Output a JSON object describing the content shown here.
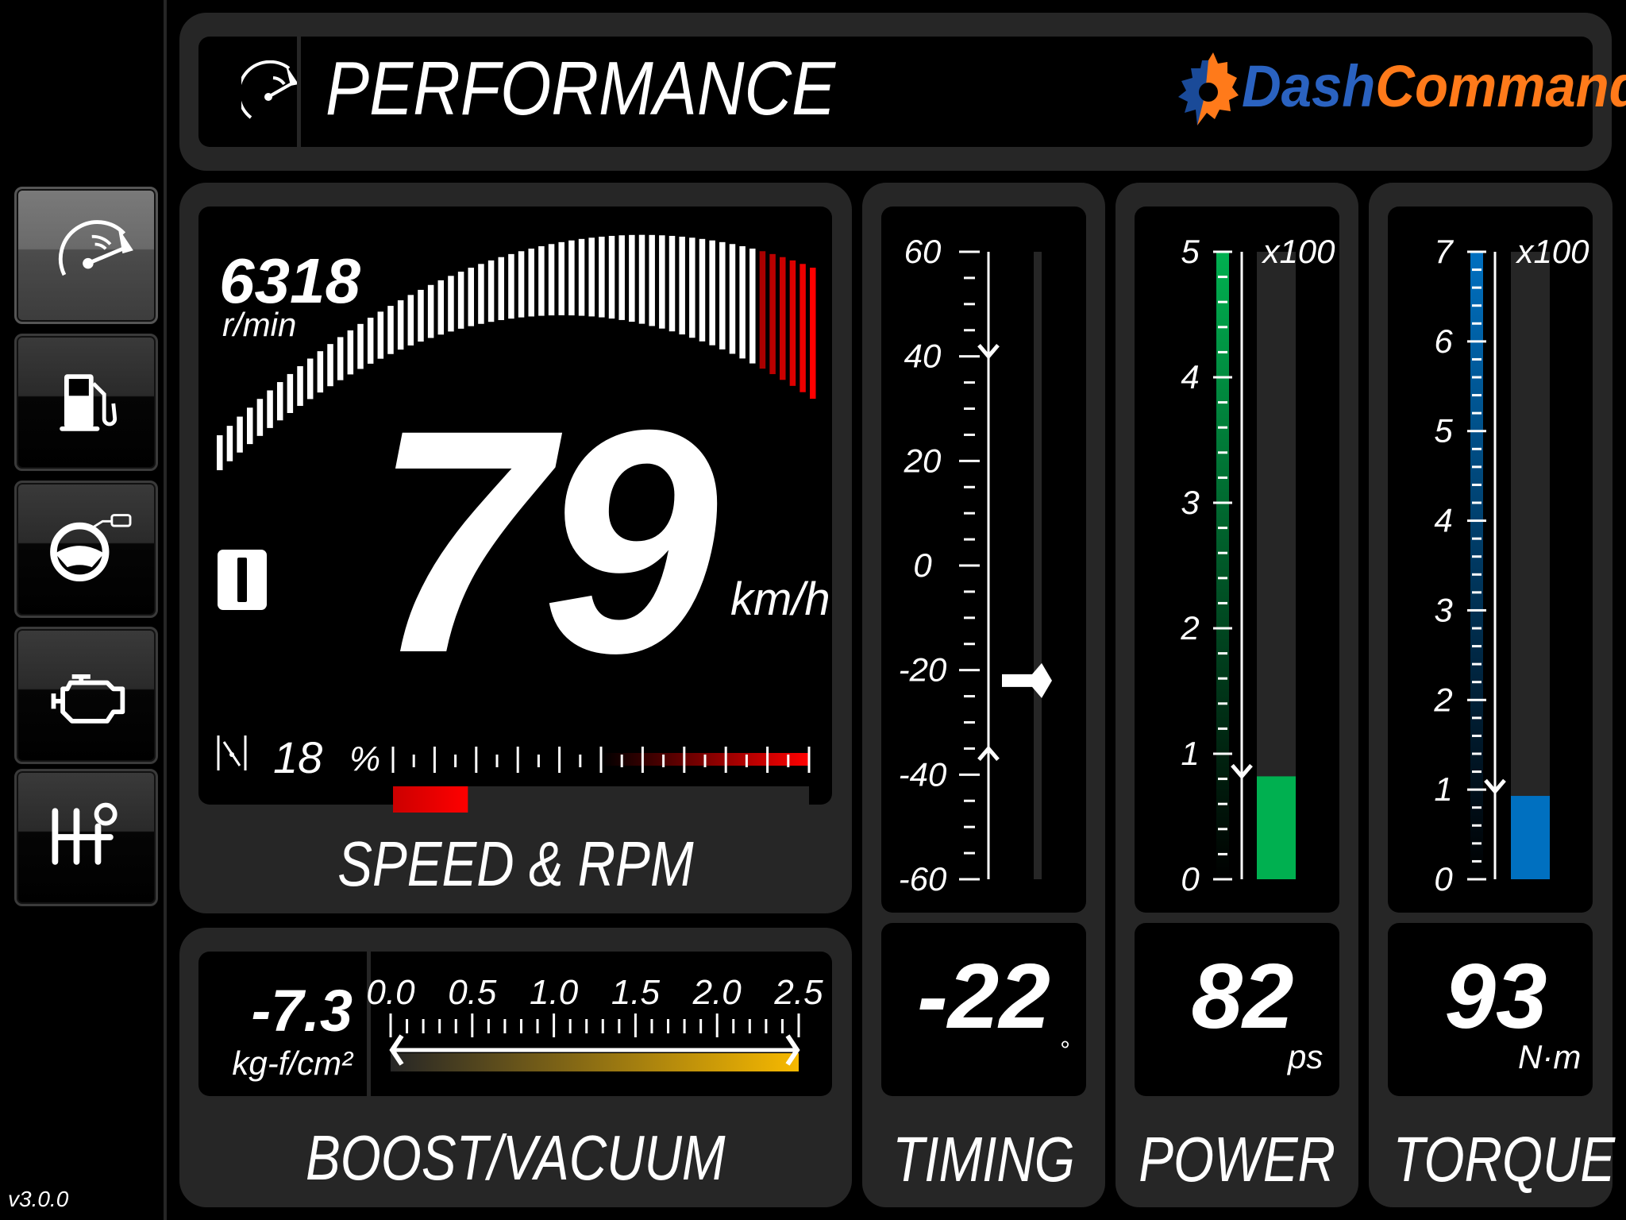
{
  "app": {
    "version": "v3.0.0"
  },
  "header": {
    "title": "PERFORMANCE",
    "icon": "gauge-icon",
    "logo": {
      "part1": "Dash",
      "part2": "Command",
      "color1": "#0b3a82",
      "color2": "#ff7a1a"
    }
  },
  "sidebar": {
    "items": [
      {
        "name": "performance",
        "icon": "gauge-icon",
        "active": true
      },
      {
        "name": "fuel",
        "icon": "fuel-pump-icon",
        "active": false
      },
      {
        "name": "driving",
        "icon": "steering-wheel-icon",
        "active": false
      },
      {
        "name": "engine",
        "icon": "engine-icon",
        "active": false
      },
      {
        "name": "transmission",
        "icon": "gear-shift-icon",
        "active": false
      }
    ]
  },
  "speed_rpm": {
    "label": "SPEED & RPM",
    "rpm": "6318",
    "rpm_unit": "r/min",
    "speed": "79",
    "speed_unit": "km/h",
    "gear_icon": "gear-indicator-icon",
    "throttle": "18",
    "throttle_unit": "%",
    "throttle_percent": 18,
    "throttle_icon": "throttle-icon",
    "colors": {
      "redline": "#ff0000",
      "throttle_fill": "#ff0000"
    }
  },
  "boost": {
    "label": "BOOST/VACUUM",
    "value": "-7.3",
    "unit": "kg-f/cm²",
    "scale_labels": [
      "0.0",
      "0.5",
      "1.0",
      "1.5",
      "2.0",
      "2.5"
    ],
    "range": [
      0,
      2.5
    ],
    "colors": {
      "bar_end": "#f7b900"
    }
  },
  "timing": {
    "label": "TIMING",
    "value": "-22",
    "unit": "°",
    "current": -22,
    "max_marker": 40,
    "min_marker": -35,
    "range": [
      -60,
      60
    ],
    "scale_labels": [
      "60",
      "40",
      "20",
      "0",
      "-20",
      "-40",
      "-60"
    ]
  },
  "power": {
    "label": "POWER",
    "value": "82",
    "unit": "ps",
    "multiplier": "x100",
    "current": 0.82,
    "max_marker": 0.82,
    "range": [
      0,
      5
    ],
    "scale_labels": [
      "5",
      "4",
      "3",
      "2",
      "1",
      "0"
    ],
    "color": "#00b050"
  },
  "torque": {
    "label": "TORQUE",
    "value": "93",
    "unit": "N·m",
    "multiplier": "x100",
    "current": 0.93,
    "max_marker": 0.98,
    "range": [
      0,
      7
    ],
    "scale_labels": [
      "7",
      "6",
      "5",
      "4",
      "3",
      "2",
      "1",
      "0"
    ],
    "color": "#0070c0"
  }
}
